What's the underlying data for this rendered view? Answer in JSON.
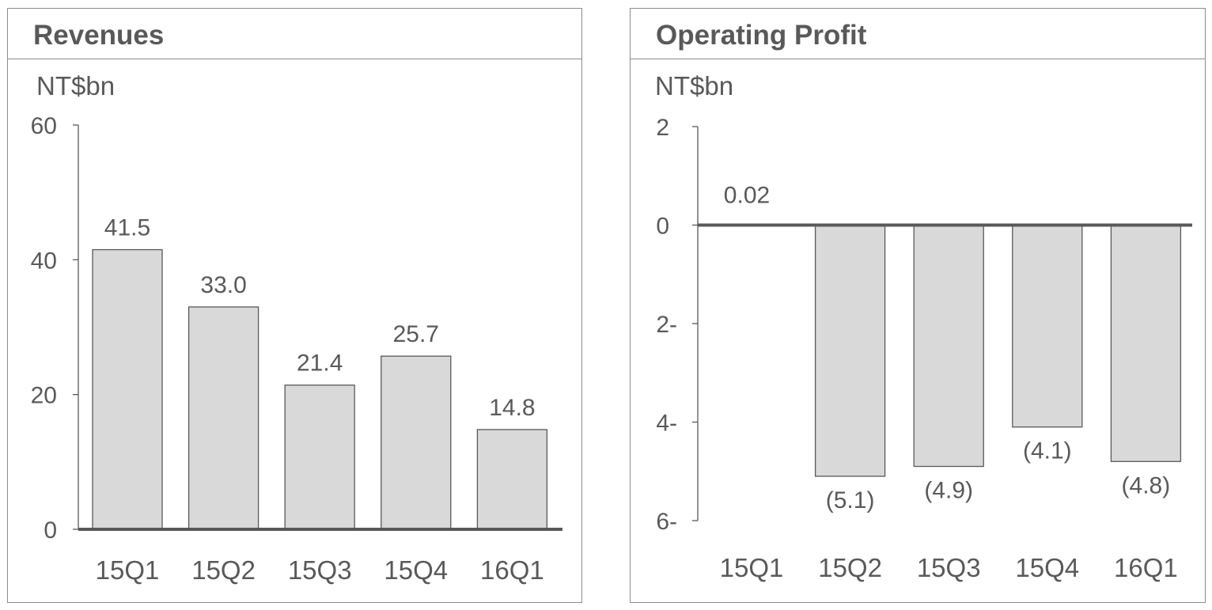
{
  "panels": {
    "left": {
      "title": "Revenues",
      "unit": "NT$bn"
    },
    "right": {
      "title": "Operating Profit",
      "unit": "NT$bn"
    }
  },
  "colors": {
    "bar_fill": "#d9d9d9",
    "bar_stroke": "#595959",
    "axis": "#595959",
    "text": "#595959"
  },
  "chart_data": [
    {
      "type": "bar",
      "title": "Revenues",
      "ylabel": "NT$bn",
      "categories": [
        "15Q1",
        "15Q2",
        "15Q3",
        "15Q4",
        "16Q1"
      ],
      "values": [
        41.5,
        33.0,
        21.4,
        25.7,
        14.8
      ],
      "data_labels": [
        "41.5",
        "33.0",
        "21.4",
        "25.7",
        "14.8"
      ],
      "ylim": [
        0,
        60
      ],
      "yticks": [
        0,
        20,
        40,
        60
      ],
      "ytick_labels": [
        "0",
        "20",
        "40",
        "60"
      ],
      "grid": false,
      "legend": "none"
    },
    {
      "type": "bar",
      "title": "Operating Profit",
      "ylabel": "NT$bn",
      "categories": [
        "15Q1",
        "15Q2",
        "15Q3",
        "15Q4",
        "16Q1"
      ],
      "values": [
        0.02,
        -5.1,
        -4.9,
        -4.1,
        -4.8
      ],
      "data_labels": [
        "0.02",
        "(5.1)",
        "(4.9)",
        "(4.1)",
        "(4.8)"
      ],
      "ylim": [
        -6,
        2
      ],
      "yticks": [
        2,
        0,
        -2,
        -4,
        -6
      ],
      "ytick_labels": [
        "2",
        "0",
        "2-",
        "4-",
        "6-"
      ],
      "grid": false,
      "legend": "none"
    }
  ]
}
